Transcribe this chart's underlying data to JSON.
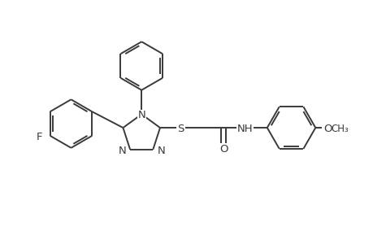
{
  "bg_color": "#ffffff",
  "line_color": "#3a3a3a",
  "line_width": 1.4,
  "font_size": 9.5,
  "fig_width": 4.6,
  "fig_height": 3.0,
  "dpi": 100,
  "xlim": [
    0,
    11
  ],
  "ylim": [
    0,
    7
  ]
}
